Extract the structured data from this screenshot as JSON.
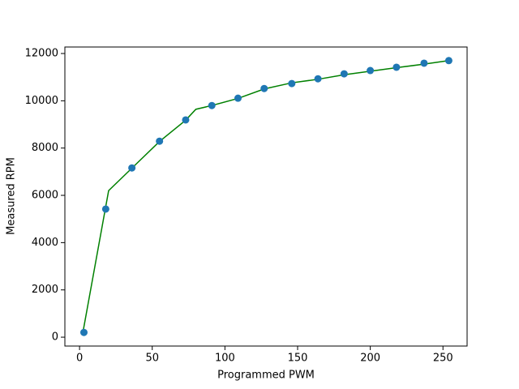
{
  "chart_data": {
    "type": "scatter",
    "x_label": "Programmed PWM",
    "y_label": "Measured RPM",
    "xlim": [
      -10.1,
      266.6
    ],
    "ylim": [
      -375,
      12275
    ],
    "xticks": [
      0,
      50,
      100,
      150,
      200,
      250
    ],
    "yticks": [
      0,
      2000,
      4000,
      6000,
      8000,
      10000,
      12000
    ],
    "grid": false,
    "series": [
      {
        "type": "line",
        "color": "#008000",
        "x": [
          2.5,
          20,
          36,
          55,
          73,
          80,
          91,
          109,
          127,
          146,
          164,
          182,
          200,
          218,
          237,
          254
        ],
        "values": [
          270,
          6200,
          7150,
          8280,
          9180,
          9640,
          9800,
          10100,
          10500,
          10760,
          10910,
          11100,
          11250,
          11400,
          11550,
          11700
        ]
      },
      {
        "type": "scatter",
        "color": "#1f77b4",
        "x": [
          3,
          18,
          36,
          55,
          73,
          91,
          109,
          127,
          146,
          164,
          182,
          200,
          218,
          237,
          254
        ],
        "values": [
          200,
          5420,
          7160,
          8290,
          9190,
          9800,
          10110,
          10520,
          10730,
          10930,
          11140,
          11280,
          11420,
          11590,
          11700
        ]
      }
    ]
  }
}
